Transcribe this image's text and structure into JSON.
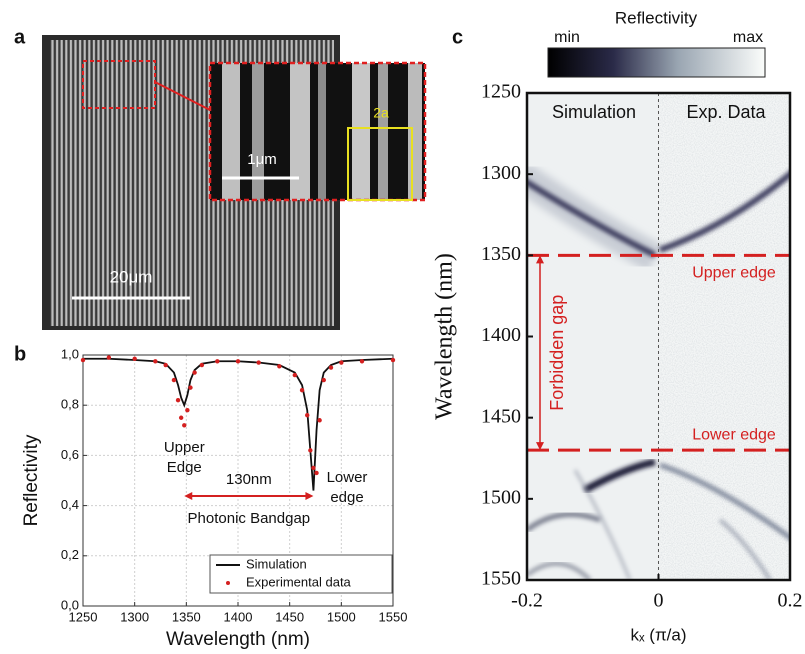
{
  "panel_a": {
    "label": "a",
    "scale_bar": "20μm",
    "inset_scale_bar": "1μm",
    "period_label": "2a"
  },
  "chart_data": [
    {
      "type": "line",
      "label": "b",
      "x_label": "Wavelength (nm)",
      "y_label": "Reflectivity",
      "x": [
        1250,
        1275,
        1300,
        1320,
        1330,
        1338,
        1342,
        1345,
        1348,
        1351,
        1354,
        1358,
        1365,
        1380,
        1400,
        1420,
        1440,
        1455,
        1462,
        1467,
        1470,
        1473,
        1476,
        1479,
        1483,
        1490,
        1500,
        1520,
        1550
      ],
      "series": [
        {
          "name": "Simulation",
          "color": "#111111",
          "style": "line",
          "values": [
            0.985,
            0.985,
            0.98,
            0.975,
            0.965,
            0.93,
            0.88,
            0.83,
            0.8,
            0.84,
            0.9,
            0.94,
            0.965,
            0.975,
            0.975,
            0.97,
            0.96,
            0.93,
            0.88,
            0.78,
            0.62,
            0.46,
            0.7,
            0.86,
            0.93,
            0.96,
            0.975,
            0.98,
            0.985
          ]
        },
        {
          "name": "Experimental data",
          "color": "#d42020",
          "style": "points",
          "values": [
            0.98,
            0.99,
            0.985,
            0.975,
            0.96,
            0.9,
            0.82,
            0.75,
            0.72,
            0.78,
            0.87,
            0.93,
            0.96,
            0.975,
            0.975,
            0.97,
            0.955,
            0.92,
            0.86,
            0.76,
            0.62,
            0.55,
            0.53,
            0.74,
            0.9,
            0.95,
            0.97,
            0.975,
            0.98
          ]
        }
      ],
      "xlim": [
        1250,
        1550
      ],
      "xticks": [
        1250,
        1300,
        1350,
        1400,
        1450,
        1500,
        1550
      ],
      "ylim": [
        0,
        1
      ],
      "yticks": [
        {
          "value": 0,
          "label": "0,0"
        },
        {
          "value": 0.2,
          "label": "0,2"
        },
        {
          "value": 0.4,
          "label": "0,4"
        },
        {
          "value": 0.6,
          "label": "0,6"
        },
        {
          "value": 0.8,
          "label": "0,8"
        },
        {
          "value": 1,
          "label": "1,0"
        }
      ],
      "grid": true,
      "legend": "bottom-right",
      "upper_edge_label": [
        "Upper",
        "Edge"
      ],
      "lower_edge_label": [
        "Lower",
        "edge"
      ],
      "bandgap": {
        "from": 1348,
        "to": 1473,
        "label": "130nm",
        "caption": "Photonic Bandgap"
      }
    },
    {
      "type": "heatmap",
      "label": "c",
      "colorbar_title": "Reflectivity",
      "colorbar_min": "min",
      "colorbar_max": "max",
      "x_label": "kₓ (π/a)",
      "y_label": "Wavelength (nm)",
      "xlim": [
        -0.2,
        0.2
      ],
      "xticks": [
        -0.2,
        0,
        0.2
      ],
      "ylim": [
        1250,
        1550
      ],
      "yticks": [
        1250,
        1300,
        1350,
        1400,
        1450,
        1500,
        1550
      ],
      "y_inverted": true,
      "divider": 0,
      "left_title": "Simulation",
      "right_title": "Exp. Data",
      "edges": [
        {
          "value": 1350,
          "label": "Upper edge"
        },
        {
          "value": 1470,
          "label": "Lower edge"
        }
      ],
      "gap_label": "Forbidden gap",
      "edge_color": "#d42020"
    }
  ]
}
